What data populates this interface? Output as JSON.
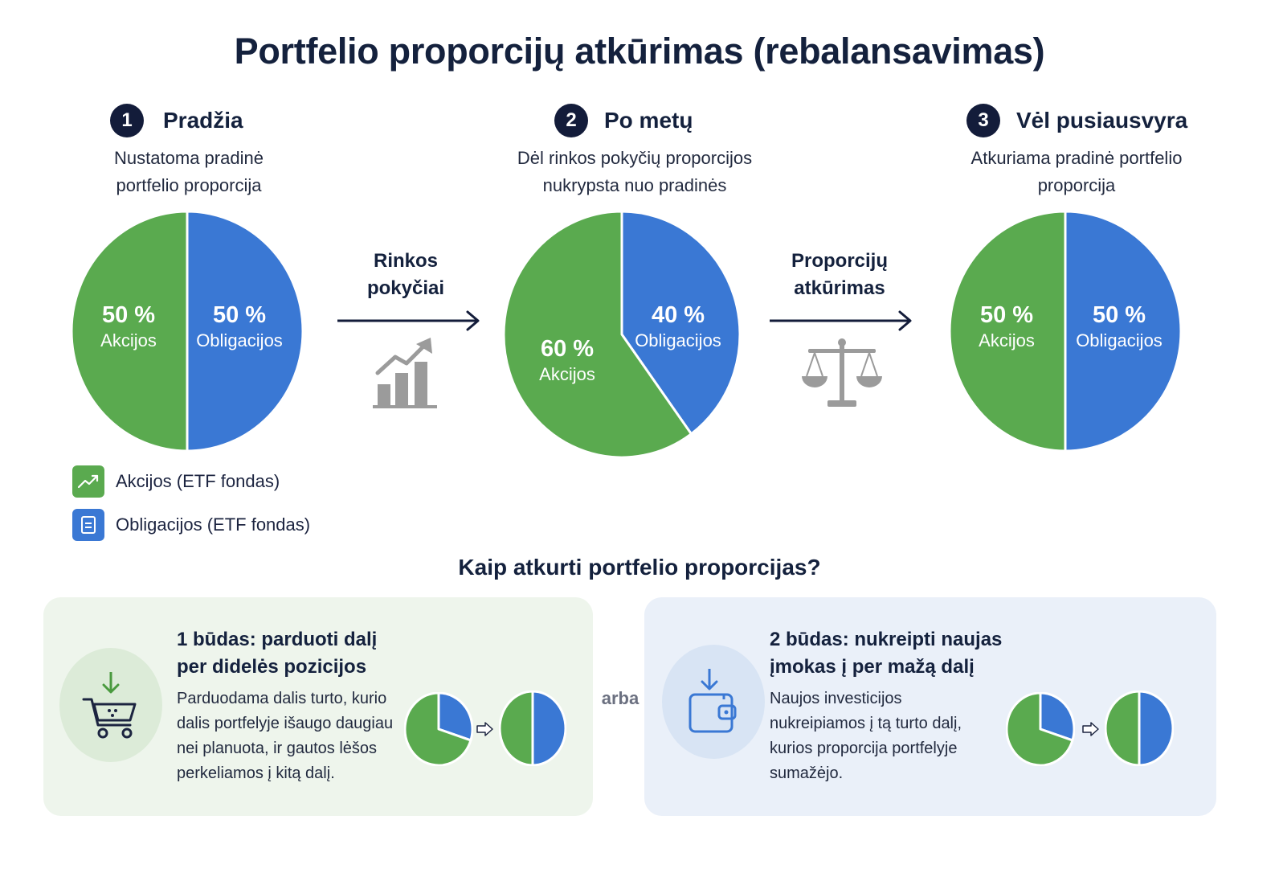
{
  "title": "Portfelio proporcijų atkūrimas (rebalansavimas)",
  "colors": {
    "green": "#5aaa4f",
    "blue": "#3a78d4",
    "navy": "#131c3a",
    "gray_icon": "#9b9b9b"
  },
  "steps": [
    {
      "number": "1",
      "title": "Pradžia",
      "desc_line1": "Nustatoma pradinė",
      "desc_line2": "portfelio proporcija"
    },
    {
      "number": "2",
      "title": "Po metų",
      "desc_line1": "Dėl rinkos pokyčių proporcijos",
      "desc_line2": "nukrypsta nuo pradinės"
    },
    {
      "number": "3",
      "title": "Vėl pusiausvyra",
      "desc_line1": "Atkuriama pradinė portfelio",
      "desc_line2": "proporcija"
    }
  ],
  "transitions": [
    {
      "line1": "Rinkos",
      "line2": "pokyčiai",
      "icon": "growth-chart-icon"
    },
    {
      "line1": "Proporcijų",
      "line2": "atkūrimas",
      "icon": "balance-scale-icon"
    }
  ],
  "chart_data": [
    {
      "type": "pie",
      "categories": [
        "Obligacijos",
        "Akcijos"
      ],
      "values": [
        50,
        50
      ],
      "labels": {
        "blue_pct": "50 %",
        "blue_name": "Obligacijos",
        "green_pct": "50 %",
        "green_name": "Akcijos"
      }
    },
    {
      "type": "pie",
      "categories": [
        "Obligacijos",
        "Akcijos"
      ],
      "values": [
        40,
        60
      ],
      "labels": {
        "blue_pct": "40 %",
        "blue_name": "Obligacijos",
        "green_pct": "60 %",
        "green_name": "Akcijos"
      }
    },
    {
      "type": "pie",
      "categories": [
        "Obligacijos",
        "Akcijos"
      ],
      "values": [
        50,
        50
      ],
      "labels": {
        "blue_pct": "50 %",
        "blue_name": "Obligacijos",
        "green_pct": "50 %",
        "green_name": "Akcijos"
      }
    }
  ],
  "legend": [
    {
      "label": "Akcijos (ETF fondas)",
      "icon": "trend-up-icon",
      "color": "#5aaa4f"
    },
    {
      "label": "Obligacijos (ETF fondas)",
      "icon": "document-icon",
      "color": "#3a78d4"
    }
  ],
  "how_to": {
    "heading": "Kaip atkurti portfelio proporcijas?",
    "separator": "arba",
    "methods": [
      {
        "title_line1": "1 būdas: parduoti dalį",
        "title_line2": "per didelės pozicijos",
        "desc": [
          "Parduodama dalis turto, kurio",
          "dalis portfelyje išaugo daugiau",
          "nei planuota, ir gautos lėšos",
          "perkeliamos į kitą dalį."
        ],
        "icon": "shopping-cart-icon",
        "mini_before": [
          30,
          70
        ],
        "mini_after": [
          50,
          50
        ]
      },
      {
        "title_line1": "2 būdas: nukreipti naujas",
        "title_line2": "įmokas į per mažą dalį",
        "desc": [
          "Naujos investicijos",
          "nukreipiamos į tą turto dalį,",
          "kurios proporcija portfelyje",
          "sumažėjo."
        ],
        "icon": "wallet-icon",
        "mini_before": [
          30,
          70
        ],
        "mini_after": [
          50,
          50
        ]
      }
    ]
  }
}
